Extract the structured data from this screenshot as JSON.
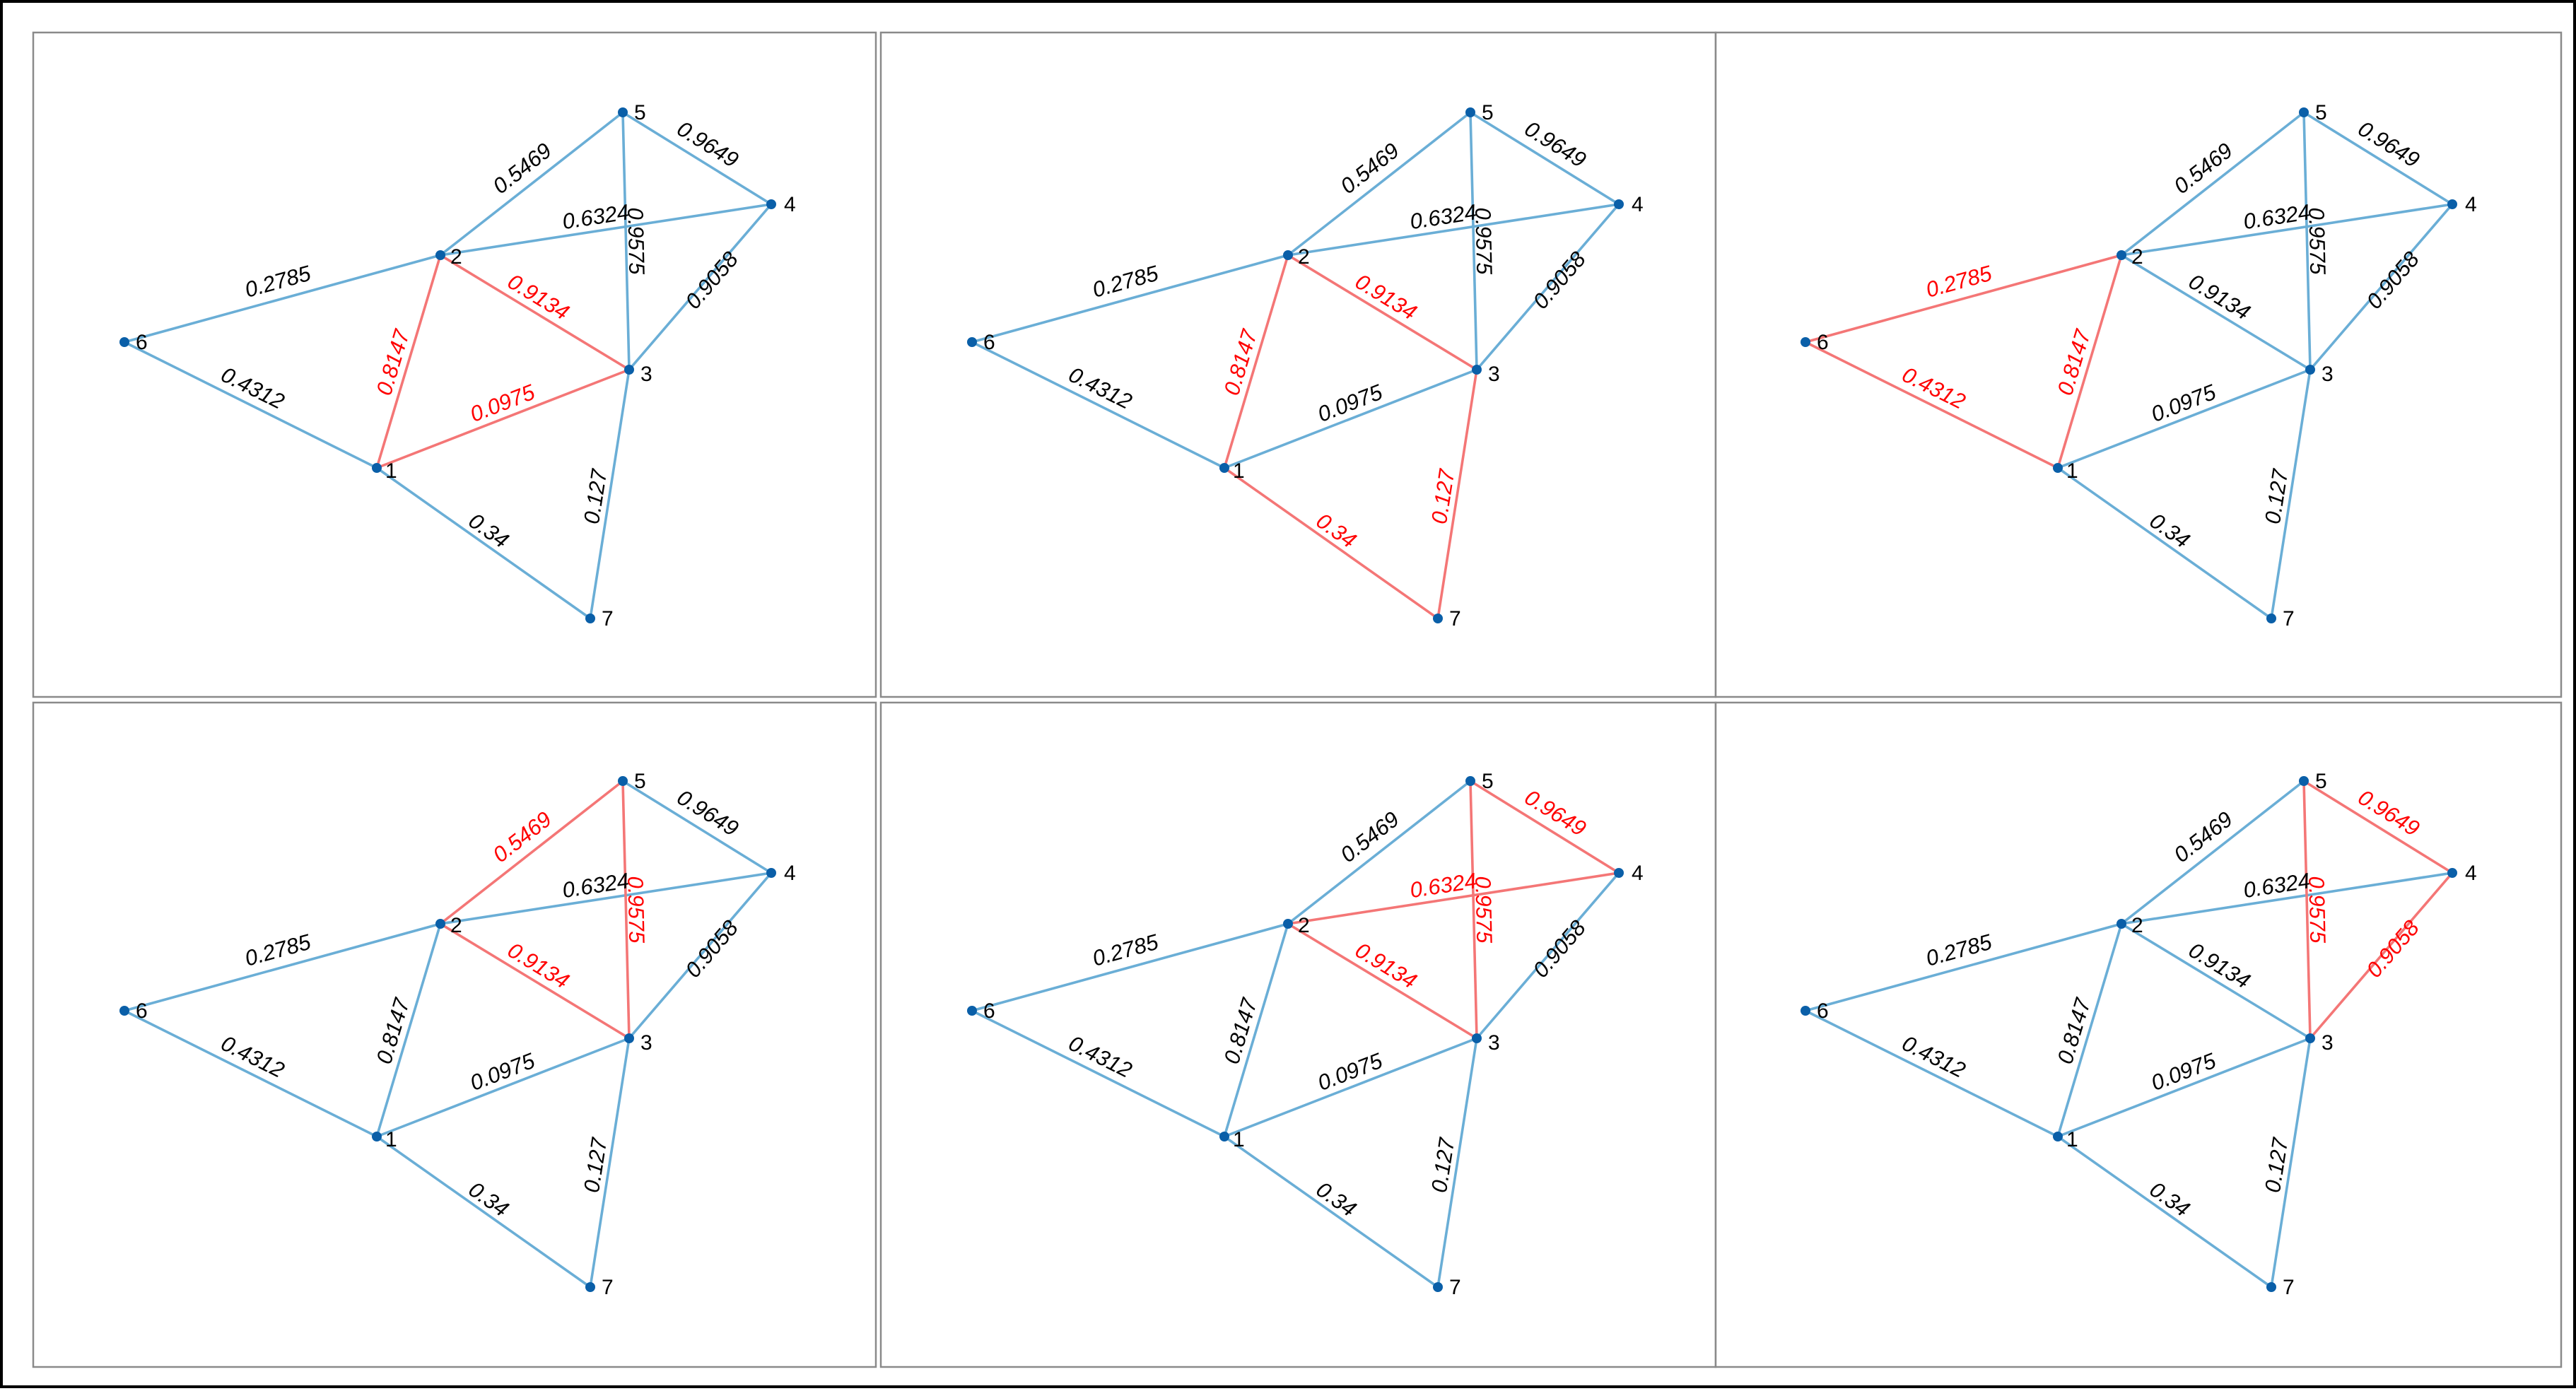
{
  "colors": {
    "edge_default": "#6aaed6",
    "edge_highlight": "#f47676",
    "label_default": "#000000",
    "label_highlight": "#ff0000",
    "node": "#0a5fa8"
  },
  "nodes": [
    {
      "id": "1",
      "label": "1"
    },
    {
      "id": "2",
      "label": "2"
    },
    {
      "id": "3",
      "label": "3"
    },
    {
      "id": "4",
      "label": "4"
    },
    {
      "id": "5",
      "label": "5"
    },
    {
      "id": "6",
      "label": "6"
    },
    {
      "id": "7",
      "label": "7"
    }
  ],
  "edges": [
    {
      "id": "e26",
      "source": "2",
      "target": "6",
      "weight": "0.2785"
    },
    {
      "id": "e16",
      "source": "1",
      "target": "6",
      "weight": "0.4312"
    },
    {
      "id": "e12",
      "source": "1",
      "target": "2",
      "weight": "0.8147"
    },
    {
      "id": "e13",
      "source": "1",
      "target": "3",
      "weight": "0.0975"
    },
    {
      "id": "e17",
      "source": "1",
      "target": "7",
      "weight": "0.34"
    },
    {
      "id": "e23",
      "source": "2",
      "target": "3",
      "weight": "0.9134"
    },
    {
      "id": "e25",
      "source": "2",
      "target": "5",
      "weight": "0.5469"
    },
    {
      "id": "e24",
      "source": "2",
      "target": "4",
      "weight": "0.6324"
    },
    {
      "id": "e35",
      "source": "3",
      "target": "5",
      "weight": "0.9575"
    },
    {
      "id": "e34",
      "source": "3",
      "target": "4",
      "weight": "0.9058"
    },
    {
      "id": "e45",
      "source": "4",
      "target": "5",
      "weight": "0.9649"
    },
    {
      "id": "e37",
      "source": "3",
      "target": "7",
      "weight": "0.127"
    }
  ],
  "panels": [
    {
      "highlighted_edges": [
        "e12",
        "e23",
        "e13"
      ]
    },
    {
      "highlighted_edges": [
        "e12",
        "e17",
        "e37",
        "e23"
      ]
    },
    {
      "highlighted_edges": [
        "e26",
        "e16",
        "e12"
      ]
    },
    {
      "highlighted_edges": [
        "e25",
        "e23",
        "e35"
      ]
    },
    {
      "highlighted_edges": [
        "e45",
        "e24",
        "e23",
        "e35"
      ]
    },
    {
      "highlighted_edges": [
        "e45",
        "e35",
        "e34"
      ]
    }
  ]
}
